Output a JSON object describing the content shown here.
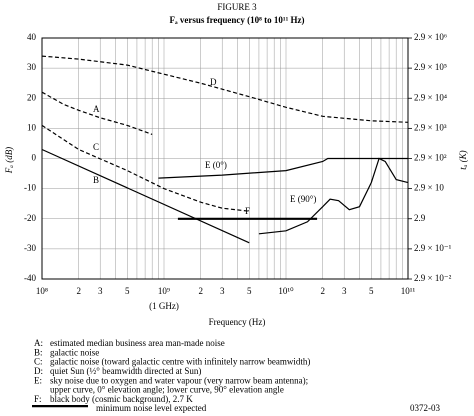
{
  "chart_data": {
    "type": "line",
    "title": "FIGURE 3",
    "subtitle": "Fₐ versus frequency (10⁸ to 10¹¹ Hz)",
    "x_label": "Frequency (Hz)",
    "y_label": "Fₐ (dB)",
    "y2_label": "tₐ (K)",
    "x_annotation": "(1 GHz)",
    "x_log": true,
    "y2_log": true,
    "grid": true,
    "color": "#000000",
    "xlim": [
      100000000,
      100000000000
    ],
    "xticks": [
      {
        "value": 100000000,
        "label": "10⁸"
      },
      {
        "value": 200000000,
        "label": "2"
      },
      {
        "value": 300000000,
        "label": "3"
      },
      {
        "value": 500000000,
        "label": "5"
      },
      {
        "value": 1000000000,
        "label": "10⁹"
      },
      {
        "value": 2000000000,
        "label": "2"
      },
      {
        "value": 3000000000,
        "label": "3"
      },
      {
        "value": 5000000000,
        "label": "5"
      },
      {
        "value": 10000000000,
        "label": "10¹⁰"
      },
      {
        "value": 20000000000,
        "label": "2"
      },
      {
        "value": 30000000000,
        "label": "3"
      },
      {
        "value": 50000000000,
        "label": "5"
      },
      {
        "value": 100000000000,
        "label": "10¹¹"
      }
    ],
    "x_minor_grid": [
      400000000,
      600000000,
      700000000,
      800000000,
      900000000,
      4000000000,
      6000000000,
      7000000000,
      8000000000,
      9000000000,
      40000000000,
      60000000000,
      70000000000,
      80000000000,
      90000000000
    ],
    "ylim": [
      -40,
      40
    ],
    "yticks": [
      40,
      30,
      20,
      10,
      0,
      -10,
      -20,
      -30,
      -40
    ],
    "y2lim": [
      0.029,
      2900000
    ],
    "y2ticks": [
      {
        "value": 2900000,
        "label": "2.9 × 10⁶"
      },
      {
        "value": 290000,
        "label": "2.9 × 10⁵"
      },
      {
        "value": 29000,
        "label": "2.9 × 10⁴"
      },
      {
        "value": 2900,
        "label": "2.9 × 10³"
      },
      {
        "value": 290,
        "label": "2.9 × 10²"
      },
      {
        "value": 29,
        "label": "2.9 × 10"
      },
      2.9,
      {
        "value": 0.29,
        "label": "2.9 × 10⁻¹"
      },
      {
        "value": 0.029,
        "label": "2.9 × 10⁻²"
      }
    ],
    "series": [
      {
        "name": "A",
        "style": "dashed",
        "x": [
          100000000,
          150000000,
          200000000,
          300000000,
          500000000,
          800000000
        ],
        "values": [
          22,
          18,
          16,
          13.5,
          11,
          8
        ]
      },
      {
        "name": "B",
        "style": "solid",
        "x": [
          100000000,
          5000000000
        ],
        "values": [
          3,
          -28
        ]
      },
      {
        "name": "C",
        "style": "dashed",
        "x": [
          100000000,
          200000000,
          500000000,
          1000000000,
          2000000000,
          3000000000,
          5000000000
        ],
        "values": [
          11,
          3,
          -4,
          -10,
          -14.5,
          -16.5,
          -17.5
        ]
      },
      {
        "name": "D",
        "style": "dashed",
        "x": [
          100000000,
          200000000,
          500000000,
          1000000000,
          2000000000,
          5000000000,
          10000000000,
          20000000000,
          50000000000,
          100000000000
        ],
        "values": [
          34,
          33,
          31,
          28,
          25,
          20.5,
          17,
          14,
          12.5,
          12
        ]
      },
      {
        "name": "E (0°)",
        "style": "solid",
        "x": [
          900000000,
          3000000000,
          10000000000,
          20000000000,
          22000000000,
          100000000000
        ],
        "values": [
          -6.5,
          -5.5,
          -4,
          -1,
          0,
          0
        ]
      },
      {
        "name": "E (90°)",
        "style": "solid",
        "x": [
          6000000000,
          10000000000,
          15000000000,
          20000000000,
          23000000000,
          27000000000,
          33000000000,
          40000000000,
          50000000000,
          58000000000,
          65000000000,
          80000000000,
          100000000000
        ],
        "values": [
          -25,
          -24,
          -21,
          -16,
          -13.5,
          -14,
          -17,
          -16,
          -8,
          0,
          -1,
          -7,
          -8
        ]
      },
      {
        "name": "F",
        "style": "thick",
        "x": [
          1300000000,
          18000000000
        ],
        "values": [
          -20,
          -20
        ]
      }
    ],
    "notes": [
      {
        "key": "A:",
        "lines": [
          "estimated median business area man-made noise"
        ]
      },
      {
        "key": "B:",
        "lines": [
          "galactic noise"
        ]
      },
      {
        "key": "C:",
        "lines": [
          "galactic noise (toward galactic centre with infinitely narrow beamwidth)"
        ]
      },
      {
        "key": "D:",
        "lines": [
          "quiet Sun (½° beamwidth directed at Sun)"
        ]
      },
      {
        "key": "E:",
        "lines": [
          "sky noise due to oxygen and water vapour (very narrow beam antenna);",
          "upper curve, 0° elevation angle; lower curve, 90° elevation angle"
        ]
      },
      {
        "key": "F:",
        "lines": [
          "black body (cosmic background), 2.7 K",
          "minimum noise level expected"
        ]
      }
    ],
    "figure_id": "0372-03"
  }
}
